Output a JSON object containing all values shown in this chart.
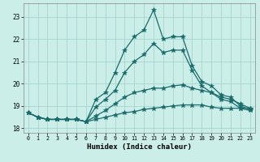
{
  "xlabel": "Humidex (Indice chaleur)",
  "background_color": "#cceee8",
  "grid_color": "#aad8d0",
  "line_color": "#1a6b6b",
  "xlim": [
    -0.5,
    23.5
  ],
  "ylim": [
    17.8,
    23.6
  ],
  "yticks": [
    18,
    19,
    20,
    21,
    22,
    23
  ],
  "xticks": [
    0,
    1,
    2,
    3,
    4,
    5,
    6,
    7,
    8,
    9,
    10,
    11,
    12,
    13,
    14,
    15,
    16,
    17,
    18,
    19,
    20,
    21,
    22,
    23
  ],
  "series": [
    [
      18.7,
      18.5,
      18.4,
      18.4,
      18.4,
      18.4,
      18.3,
      19.3,
      19.6,
      20.5,
      21.5,
      22.1,
      22.4,
      23.3,
      22.0,
      22.1,
      22.1,
      20.8,
      20.1,
      19.9,
      19.5,
      19.4,
      19.0,
      18.85
    ],
    [
      18.7,
      18.5,
      18.4,
      18.4,
      18.4,
      18.4,
      18.3,
      18.95,
      19.3,
      19.7,
      20.5,
      21.0,
      21.3,
      21.8,
      21.4,
      21.5,
      21.5,
      20.6,
      19.9,
      19.6,
      19.3,
      19.2,
      18.9,
      18.8
    ],
    [
      18.7,
      18.5,
      18.4,
      18.4,
      18.4,
      18.4,
      18.3,
      18.55,
      18.8,
      19.1,
      19.4,
      19.6,
      19.7,
      19.8,
      19.8,
      19.9,
      19.95,
      19.8,
      19.7,
      19.6,
      19.4,
      19.3,
      19.1,
      18.9
    ],
    [
      18.7,
      18.5,
      18.4,
      18.4,
      18.4,
      18.4,
      18.3,
      18.4,
      18.5,
      18.6,
      18.7,
      18.75,
      18.85,
      18.9,
      18.95,
      19.0,
      19.05,
      19.05,
      19.05,
      18.95,
      18.9,
      18.9,
      18.9,
      18.9
    ]
  ],
  "marker": "*",
  "marker_size": 4,
  "line_width": 0.9
}
